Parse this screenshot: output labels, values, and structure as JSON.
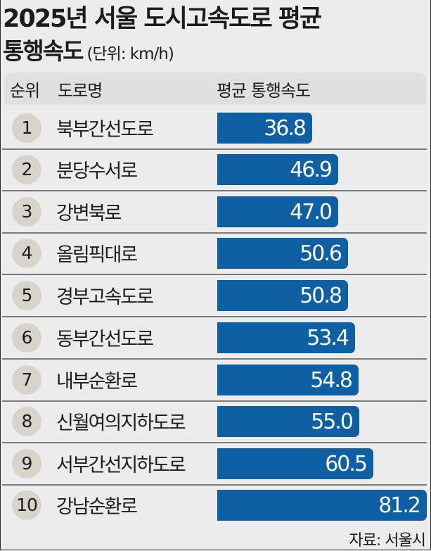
{
  "title": {
    "line1": "2025년 서울 도시고속도로 평균",
    "line2": "통행속도",
    "unit": "(단위: km/h)"
  },
  "table_header": {
    "rank": "순위",
    "road": "도로명",
    "speed": "평균 통행속도"
  },
  "rows": [
    {
      "rank": "1",
      "road": "북부간선도로",
      "value": "36.8"
    },
    {
      "rank": "2",
      "road": "분당수서로",
      "value": "46.9"
    },
    {
      "rank": "3",
      "road": "강변북로",
      "value": "47.0"
    },
    {
      "rank": "4",
      "road": "올림픽대로",
      "value": "50.6"
    },
    {
      "rank": "5",
      "road": "경부고속도로",
      "value": "50.8"
    },
    {
      "rank": "6",
      "road": "동부간선도로",
      "value": "53.4"
    },
    {
      "rank": "7",
      "road": "내부순환로",
      "value": "54.8"
    },
    {
      "rank": "8",
      "road": "신월여의지하도로",
      "value": "55.0"
    },
    {
      "rank": "9",
      "road": "서부간선지하도로",
      "value": "60.5"
    },
    {
      "rank": "10",
      "road": "강남순환로",
      "value": "81.2"
    }
  ],
  "source": "자료: 서울시",
  "colors": {
    "bar": "#0e5fa3",
    "rank_circle": "#d9d4cb",
    "background": "#ececec"
  },
  "chart_data": {
    "type": "bar",
    "orientation": "horizontal",
    "title": "2025년 서울 도시고속도로 평균 통행속도",
    "subtitle": "(단위: km/h)",
    "xlabel": "평균 통행속도",
    "ylabel": "도로명",
    "categories": [
      "북부간선도로",
      "분당수서로",
      "강변북로",
      "올림픽대로",
      "경부고속도로",
      "동부간선도로",
      "내부순환로",
      "신월여의지하도로",
      "서부간선지하도로",
      "강남순환로"
    ],
    "values": [
      36.8,
      46.9,
      47.0,
      50.6,
      50.8,
      53.4,
      54.8,
      55.0,
      60.5,
      81.2
    ],
    "ranks": [
      1,
      2,
      3,
      4,
      5,
      6,
      7,
      8,
      9,
      10
    ],
    "unit": "km/h",
    "source": "자료: 서울시",
    "grid": false,
    "legend": null
  }
}
